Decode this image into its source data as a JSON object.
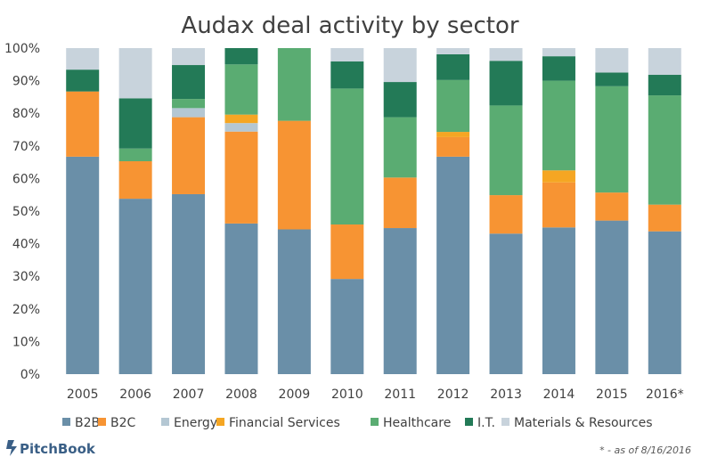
{
  "chart_data": {
    "type": "bar",
    "stacked": true,
    "title": "Audax deal activity by sector",
    "xlabel": "",
    "ylabel": "",
    "ylim": [
      0,
      100
    ],
    "yticks": [
      "0%",
      "10%",
      "20%",
      "30%",
      "40%",
      "50%",
      "60%",
      "70%",
      "80%",
      "90%",
      "100%"
    ],
    "categories": [
      "2005",
      "2006",
      "2007",
      "2008",
      "2009",
      "2010",
      "2011",
      "2012",
      "2013",
      "2014",
      "2015",
      "2016*"
    ],
    "legend_position": "bottom",
    "grid": false,
    "series": [
      {
        "name": "B2B",
        "color": "#6a8fa8",
        "values": [
          66.7,
          53.8,
          55.2,
          46.2,
          44.4,
          29.2,
          44.8,
          66.7,
          43.1,
          45.0,
          47.1,
          43.8
        ]
      },
      {
        "name": "B2C",
        "color": "#f79433",
        "values": [
          20.0,
          11.5,
          23.6,
          28.2,
          33.3,
          16.7,
          15.5,
          6.0,
          11.8,
          13.8,
          8.6,
          8.2
        ]
      },
      {
        "name": "Energy",
        "color": "#b4c7d3",
        "values": [
          0,
          0,
          2.8,
          2.6,
          0,
          0,
          0,
          0,
          0,
          0,
          0,
          0
        ]
      },
      {
        "name": "Financial Services",
        "color": "#f5a623",
        "values": [
          0,
          0,
          0,
          2.6,
          0,
          0,
          0,
          1.6,
          0,
          3.7,
          0,
          0
        ]
      },
      {
        "name": "Healthcare",
        "color": "#5aac72",
        "values": [
          0,
          3.9,
          2.8,
          15.4,
          22.3,
          41.7,
          18.5,
          15.9,
          27.5,
          27.5,
          32.6,
          33.5
        ]
      },
      {
        "name": "I.T.",
        "color": "#237a57",
        "values": [
          6.7,
          15.4,
          10.4,
          5.0,
          0,
          8.3,
          10.8,
          7.9,
          13.7,
          7.5,
          4.2,
          6.3
        ]
      },
      {
        "name": "Materials & Resources",
        "color": "#c8d3dc",
        "values": [
          6.6,
          15.4,
          5.2,
          0,
          0,
          4.1,
          10.4,
          1.9,
          3.9,
          2.5,
          7.5,
          8.2
        ]
      }
    ]
  },
  "footnote": "* - as of 8/16/2016",
  "brand": {
    "name": "PitchBook"
  }
}
